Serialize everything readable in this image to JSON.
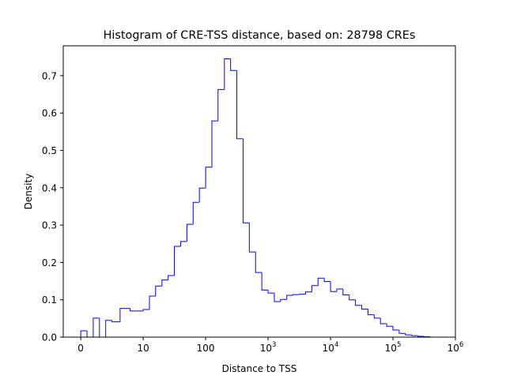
{
  "chart_data": {
    "type": "histogram",
    "title": "Histogram of CRE-TSS distance, based on: 28798 CREs",
    "xlabel": "Distance to TSS",
    "ylabel": "Density",
    "x_scale": "symlog (linear below 10, log above)",
    "xlim": [
      -0.3,
      1000000
    ],
    "ylim": [
      0,
      0.78
    ],
    "x_ticks": [
      {
        "value": 0,
        "label": "0"
      },
      {
        "value": 10,
        "label": "10"
      },
      {
        "value": 100,
        "label": "100"
      },
      {
        "value": 1000,
        "label": "10",
        "exp": "3"
      },
      {
        "value": 10000,
        "label": "10",
        "exp": "4"
      },
      {
        "value": 100000,
        "label": "10",
        "exp": "5"
      },
      {
        "value": 1000000,
        "label": "10",
        "exp": "6"
      }
    ],
    "y_ticks": [
      {
        "value": 0.0,
        "label": "0.0"
      },
      {
        "value": 0.1,
        "label": "0.1"
      },
      {
        "value": 0.2,
        "label": "0.2"
      },
      {
        "value": 0.3,
        "label": "0.3"
      },
      {
        "value": 0.4,
        "label": "0.4"
      },
      {
        "value": 0.5,
        "label": "0.5"
      },
      {
        "value": 0.6,
        "label": "0.6"
      },
      {
        "value": 0.7,
        "label": "0.7"
      }
    ],
    "grid": false,
    "line_color": "#0000ff",
    "bin_edges": [
      0,
      1,
      2,
      3,
      4,
      5,
      6.3,
      7.9,
      10,
      12.6,
      15.8,
      20,
      25.1,
      31.6,
      39.8,
      50.1,
      63.1,
      79.4,
      100,
      126,
      158,
      200,
      251,
      316,
      398,
      501,
      631,
      794,
      1000,
      1259,
      1585,
      1995,
      2512,
      3162,
      3981,
      5012,
      6310,
      7943,
      10000,
      12589,
      15849,
      19953,
      25119,
      31623,
      39811,
      50119,
      63096,
      79433,
      100000,
      125893,
      158489,
      199526,
      251189,
      316228,
      398107,
      501187
    ],
    "densities": [
      0.017,
      0.0,
      0.051,
      0.0,
      0.045,
      0.041,
      0.077,
      0.07,
      0.074,
      0.11,
      0.137,
      0.153,
      0.165,
      0.243,
      0.256,
      0.302,
      0.361,
      0.399,
      0.455,
      0.579,
      0.663,
      0.745,
      0.714,
      0.531,
      0.306,
      0.228,
      0.173,
      0.126,
      0.118,
      0.095,
      0.101,
      0.112,
      0.114,
      0.115,
      0.121,
      0.138,
      0.158,
      0.149,
      0.122,
      0.129,
      0.113,
      0.1,
      0.085,
      0.075,
      0.06,
      0.051,
      0.036,
      0.029,
      0.019,
      0.01,
      0.006,
      0.004,
      0.002,
      0.001,
      0.0
    ]
  }
}
